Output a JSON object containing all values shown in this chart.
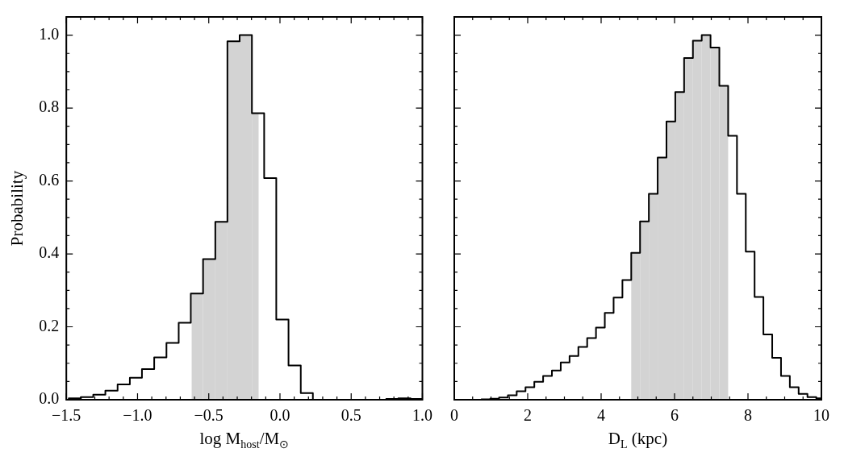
{
  "chart_data": [
    {
      "type": "histogram",
      "xlabel": "log  M$_{host}$/M$_{⊙}$",
      "ylabel": "Probability",
      "color": "#000000",
      "bins": [
        -1.483,
        -1.397,
        -1.311,
        -1.226,
        -1.14,
        -1.054,
        -0.969,
        -0.883,
        -0.797,
        -0.711,
        -0.626,
        -0.54,
        -0.454,
        -0.369,
        -0.283,
        -0.197,
        -0.111,
        -0.026,
        0.06,
        0.146,
        0.231,
        0.317,
        0.403,
        0.489,
        0.574,
        0.66,
        0.746,
        0.831,
        0.917,
        1.0
      ],
      "values": [
        0.004,
        0.007,
        0.014,
        0.025,
        0.042,
        0.06,
        0.084,
        0.116,
        0.156,
        0.211,
        0.291,
        0.386,
        0.488,
        0.983,
        1.0,
        0.786,
        0.608,
        0.22,
        0.094,
        0.018,
        0,
        0,
        0,
        0,
        0,
        0,
        0.002,
        0.004,
        0.002
      ],
      "series": [
        {
          "type": "histogram",
          "color": "#d3d3d3",
          "bins": [
            -0.62,
            -0.54,
            -0.454,
            -0.369,
            -0.283,
            -0.197,
            -0.15
          ],
          "values": [
            0.291,
            0.386,
            0.488,
            0.983,
            1.0,
            0.786
          ]
        }
      ],
      "xlim": [
        -1.5,
        1.0
      ],
      "ylim": [
        0,
        1.05
      ],
      "xticks": [
        {
          "value": -1.5,
          "label": "−1.5"
        },
        {
          "value": -1.4,
          "label": null
        },
        {
          "value": -1.3,
          "label": null
        },
        {
          "value": -1.2,
          "label": null
        },
        {
          "value": -1.1,
          "label": null
        },
        {
          "value": -1.0,
          "label": "−1.0"
        },
        {
          "value": -0.9,
          "label": null
        },
        {
          "value": -0.8,
          "label": null
        },
        {
          "value": -0.7,
          "label": null
        },
        {
          "value": -0.6,
          "label": null
        },
        {
          "value": -0.5,
          "label": "−0.5"
        },
        {
          "value": -0.4,
          "label": null
        },
        {
          "value": -0.3,
          "label": null
        },
        {
          "value": -0.2,
          "label": null
        },
        {
          "value": -0.1,
          "label": null
        },
        {
          "value": 0,
          "label": "0.0"
        },
        {
          "value": 0.1,
          "label": null
        },
        {
          "value": 0.2,
          "label": null
        },
        {
          "value": 0.3,
          "label": null
        },
        {
          "value": 0.4,
          "label": null
        },
        {
          "value": 0.5,
          "label": "0.5"
        },
        {
          "value": 0.6,
          "label": null
        },
        {
          "value": 0.7,
          "label": null
        },
        {
          "value": 0.8,
          "label": null
        },
        {
          "value": 0.9,
          "label": null
        },
        {
          "value": 1.0,
          "label": "1.0"
        }
      ],
      "yticks": [
        {
          "value": 0,
          "label": "0.0"
        },
        {
          "value": 0.05,
          "label": null
        },
        {
          "value": 0.1,
          "label": null
        },
        {
          "value": 0.15,
          "label": null
        },
        {
          "value": 0.2,
          "label": "0.2"
        },
        {
          "value": 0.25,
          "label": null
        },
        {
          "value": 0.3,
          "label": null
        },
        {
          "value": 0.35,
          "label": null
        },
        {
          "value": 0.4,
          "label": "0.4"
        },
        {
          "value": 0.45,
          "label": null
        },
        {
          "value": 0.5,
          "label": null
        },
        {
          "value": 0.55,
          "label": null
        },
        {
          "value": 0.6,
          "label": "0.6"
        },
        {
          "value": 0.65,
          "label": null
        },
        {
          "value": 0.7,
          "label": null
        },
        {
          "value": 0.75,
          "label": null
        },
        {
          "value": 0.8,
          "label": "0.8"
        },
        {
          "value": 0.85,
          "label": null
        },
        {
          "value": 0.9,
          "label": null
        },
        {
          "value": 0.95,
          "label": null
        },
        {
          "value": 1.0,
          "label": "1.0"
        }
      ]
    },
    {
      "type": "histogram",
      "xlabel": "D$_{L}$ (kpc)",
      "color": "#000000",
      "tick_labels": "x",
      "bins": [
        0.5,
        0.74,
        0.98,
        1.22,
        1.46,
        1.7,
        1.94,
        2.18,
        2.42,
        2.66,
        2.9,
        3.14,
        3.38,
        3.62,
        3.86,
        4.1,
        4.34,
        4.58,
        4.82,
        5.06,
        5.3,
        5.54,
        5.78,
        6.02,
        6.26,
        6.5,
        6.74,
        6.98,
        7.22,
        7.46,
        7.7,
        7.94,
        8.18,
        8.42,
        8.66,
        8.9,
        9.14,
        9.38,
        9.62,
        9.86,
        10.0
      ],
      "values": [
        0,
        0.001,
        0.003,
        0.006,
        0.012,
        0.023,
        0.034,
        0.049,
        0.065,
        0.08,
        0.102,
        0.12,
        0.145,
        0.169,
        0.198,
        0.238,
        0.28,
        0.328,
        0.403,
        0.489,
        0.565,
        0.664,
        0.763,
        0.844,
        0.937,
        0.985,
        1.0,
        0.966,
        0.861,
        0.724,
        0.565,
        0.406,
        0.282,
        0.179,
        0.115,
        0.065,
        0.034,
        0.016,
        0.007,
        0.004
      ],
      "series": [
        {
          "type": "histogram",
          "color": "#d3d3d3",
          "bins": [
            4.82,
            5.06,
            5.3,
            5.54,
            5.78,
            6.02,
            6.26,
            6.5,
            6.74,
            6.98,
            7.22,
            7.46
          ],
          "values": [
            0.403,
            0.489,
            0.565,
            0.664,
            0.763,
            0.844,
            0.937,
            0.985,
            1.0,
            0.966,
            0.861
          ]
        }
      ],
      "xlim": [
        0,
        10
      ],
      "ylim": [
        0,
        1.05
      ],
      "yticks": [
        0,
        {
          "value": 0.05,
          "label": null
        },
        {
          "value": 0.1,
          "label": null
        },
        {
          "value": 0.15,
          "label": null
        },
        0.2,
        {
          "value": 0.25,
          "label": null
        },
        {
          "value": 0.3,
          "label": null
        },
        {
          "value": 0.35,
          "label": null
        },
        0.4,
        {
          "value": 0.45,
          "label": null
        },
        {
          "value": 0.5,
          "label": null
        },
        {
          "value": 0.55,
          "label": null
        },
        0.6,
        {
          "value": 0.65,
          "label": null
        },
        {
          "value": 0.7,
          "label": null
        },
        {
          "value": 0.75,
          "label": null
        },
        0.8,
        {
          "value": 0.85,
          "label": null
        },
        {
          "value": 0.9,
          "label": null
        },
        {
          "value": 0.95,
          "label": null
        },
        1.0
      ],
      "xticks": [
        {
          "value": 0,
          "label": "0"
        },
        {
          "value": 0.5,
          "label": null
        },
        {
          "value": 1,
          "label": null
        },
        {
          "value": 1.5,
          "label": null
        },
        {
          "value": 2,
          "label": "2"
        },
        {
          "value": 2.5,
          "label": null
        },
        {
          "value": 3,
          "label": null
        },
        {
          "value": 3.5,
          "label": null
        },
        {
          "value": 4,
          "label": "4"
        },
        {
          "value": 4.5,
          "label": null
        },
        {
          "value": 5,
          "label": null
        },
        {
          "value": 5.5,
          "label": null
        },
        {
          "value": 6,
          "label": "6"
        },
        {
          "value": 6.5,
          "label": null
        },
        {
          "value": 7,
          "label": null
        },
        {
          "value": 7.5,
          "label": null
        },
        {
          "value": 8,
          "label": "8"
        },
        {
          "value": 8.5,
          "label": null
        },
        {
          "value": 9,
          "label": null
        },
        {
          "value": 9.5,
          "label": null
        },
        {
          "value": 10,
          "label": "10"
        }
      ]
    }
  ]
}
